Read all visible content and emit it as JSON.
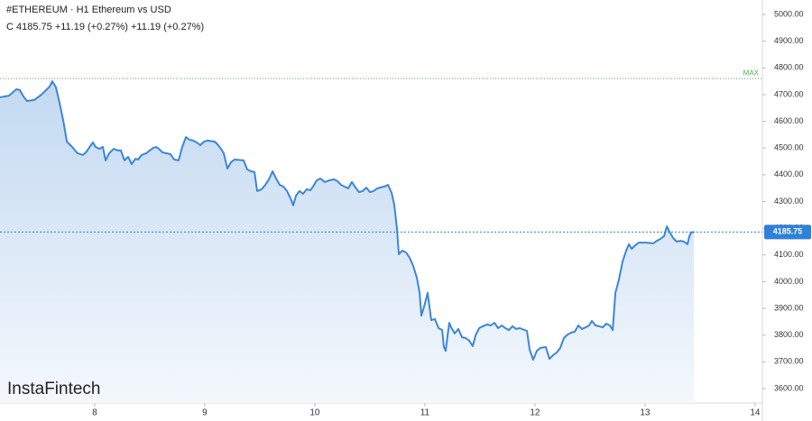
{
  "chart_data": {
    "type": "area",
    "title": "#ETHEREUM · H1 Ethereum vs USD",
    "subtitle": "C 4185.75 +11.19 (+0.27%) +11.19 (+0.27%)",
    "watermark": "InstaFintech",
    "color": "#3d86d6",
    "fill_top": "#c3d9f1",
    "fill_bottom": "#f4f8fd",
    "xlim": [
      7.14,
      14.066
    ],
    "xticks": [
      8,
      9,
      10,
      11,
      12,
      13,
      14
    ],
    "ylim": [
      3546,
      5054
    ],
    "yticks": [
      {
        "value": 3600,
        "label": "3600.00"
      },
      {
        "value": 3700,
        "label": "3700.00"
      },
      {
        "value": 3800,
        "label": "3800.00"
      },
      {
        "value": 3900,
        "label": "3900.00"
      },
      {
        "value": 4000,
        "label": "4000.00"
      },
      {
        "value": 4100,
        "label": "4100.00"
      },
      {
        "value": 4200,
        "label": "4200.00"
      },
      {
        "value": 4300,
        "label": "4300.00"
      },
      {
        "value": 4400,
        "label": "4400.00"
      },
      {
        "value": 4500,
        "label": "4500.00"
      },
      {
        "value": 4600,
        "label": "4600.00"
      },
      {
        "value": 4700,
        "label": "4700.00"
      },
      {
        "value": 4800,
        "label": "4800.00"
      },
      {
        "value": 4900,
        "label": "4900.00"
      },
      {
        "value": 5000,
        "label": "5000.00"
      }
    ],
    "max_line": {
      "value": 4760,
      "label": "MAX",
      "color": "#4caf50"
    },
    "last_price": 4185.75,
    "last_price_color": "#2f80d8",
    "x": [
      7.14,
      7.222,
      7.288,
      7.32,
      7.353,
      7.386,
      7.451,
      7.517,
      7.591,
      7.615,
      7.648,
      7.681,
      7.714,
      7.747,
      7.796,
      7.845,
      7.894,
      7.927,
      7.96,
      7.984,
      8.009,
      8.042,
      8.074,
      8.099,
      8.132,
      8.173,
      8.214,
      8.238,
      8.271,
      8.304,
      8.337,
      8.37,
      8.394,
      8.427,
      8.468,
      8.501,
      8.534,
      8.558,
      8.583,
      8.615,
      8.656,
      8.689,
      8.722,
      8.763,
      8.796,
      8.829,
      8.861,
      8.894,
      8.927,
      8.96,
      8.993,
      9.025,
      9.091,
      9.116,
      9.148,
      9.173,
      9.206,
      9.238,
      9.271,
      9.353,
      9.386,
      9.419,
      9.452,
      9.476,
      9.517,
      9.55,
      9.583,
      9.616,
      9.648,
      9.681,
      9.714,
      9.747,
      9.779,
      9.804,
      9.829,
      9.861,
      9.894,
      9.927,
      9.96,
      9.984,
      10.017,
      10.05,
      10.091,
      10.132,
      10.173,
      10.206,
      10.238,
      10.304,
      10.337,
      10.37,
      10.402,
      10.435,
      10.468,
      10.501,
      10.534,
      10.566,
      10.632,
      10.665,
      10.698,
      10.722,
      10.747,
      10.763,
      10.796,
      10.829,
      10.862,
      10.894,
      10.927,
      10.952,
      10.968,
      10.993,
      11.025,
      11.058,
      11.091,
      11.124,
      11.157,
      11.173,
      11.189,
      11.206,
      11.222,
      11.238,
      11.271,
      11.304,
      11.337,
      11.37,
      11.403,
      11.435,
      11.46,
      11.493,
      11.526,
      11.566,
      11.599,
      11.632,
      11.665,
      11.698,
      11.731,
      11.763,
      11.796,
      11.829,
      11.862,
      11.927,
      11.952,
      11.984,
      12.017,
      12.05,
      12.099,
      12.132,
      12.165,
      12.198,
      12.23,
      12.263,
      12.296,
      12.329,
      12.362,
      12.394,
      12.427,
      12.46,
      12.493,
      12.517,
      12.55,
      12.583,
      12.616,
      12.648,
      12.681,
      12.706,
      12.731,
      12.763,
      12.796,
      12.829,
      12.854,
      12.878,
      12.911,
      12.944,
      13.009,
      13.075,
      13.108,
      13.14,
      13.173,
      13.198,
      13.222,
      13.255,
      13.288,
      13.321,
      13.353,
      13.386,
      13.403,
      13.419,
      13.444
    ],
    "values": [
      4690,
      4696,
      4720,
      4717,
      4693,
      4676,
      4680,
      4700,
      4730,
      4750,
      4727,
      4669,
      4605,
      4524,
      4504,
      4480,
      4474,
      4487,
      4507,
      4521,
      4504,
      4497,
      4504,
      4454,
      4480,
      4497,
      4491,
      4491,
      4454,
      4467,
      4440,
      4460,
      4457,
      4474,
      4480,
      4491,
      4501,
      4504,
      4497,
      4484,
      4480,
      4477,
      4457,
      4454,
      4504,
      4541,
      4531,
      4528,
      4521,
      4511,
      4524,
      4528,
      4524,
      4514,
      4497,
      4480,
      4423,
      4447,
      4457,
      4454,
      4420,
      4413,
      4410,
      4339,
      4346,
      4362,
      4383,
      4413,
      4386,
      4362,
      4356,
      4339,
      4312,
      4285,
      4322,
      4339,
      4329,
      4346,
      4342,
      4356,
      4379,
      4386,
      4373,
      4379,
      4383,
      4376,
      4362,
      4349,
      4373,
      4352,
      4335,
      4339,
      4352,
      4335,
      4339,
      4349,
      4356,
      4362,
      4332,
      4288,
      4194,
      4103,
      4116,
      4109,
      4089,
      4059,
      4015,
      3958,
      3873,
      3907,
      3958,
      3856,
      3860,
      3826,
      3819,
      3755,
      3741,
      3799,
      3846,
      3829,
      3806,
      3823,
      3792,
      3789,
      3779,
      3759,
      3799,
      3826,
      3833,
      3840,
      3836,
      3846,
      3826,
      3836,
      3826,
      3819,
      3833,
      3823,
      3826,
      3816,
      3745,
      3708,
      3741,
      3752,
      3755,
      3711,
      3725,
      3735,
      3752,
      3789,
      3802,
      3809,
      3813,
      3836,
      3823,
      3829,
      3836,
      3853,
      3836,
      3833,
      3829,
      3843,
      3836,
      3819,
      3958,
      4008,
      4076,
      4116,
      4140,
      4123,
      4136,
      4146,
      4146,
      4143,
      4153,
      4160,
      4170,
      4207,
      4187,
      4163,
      4150,
      4153,
      4150,
      4140,
      4170,
      4184,
      4185.75
    ]
  }
}
